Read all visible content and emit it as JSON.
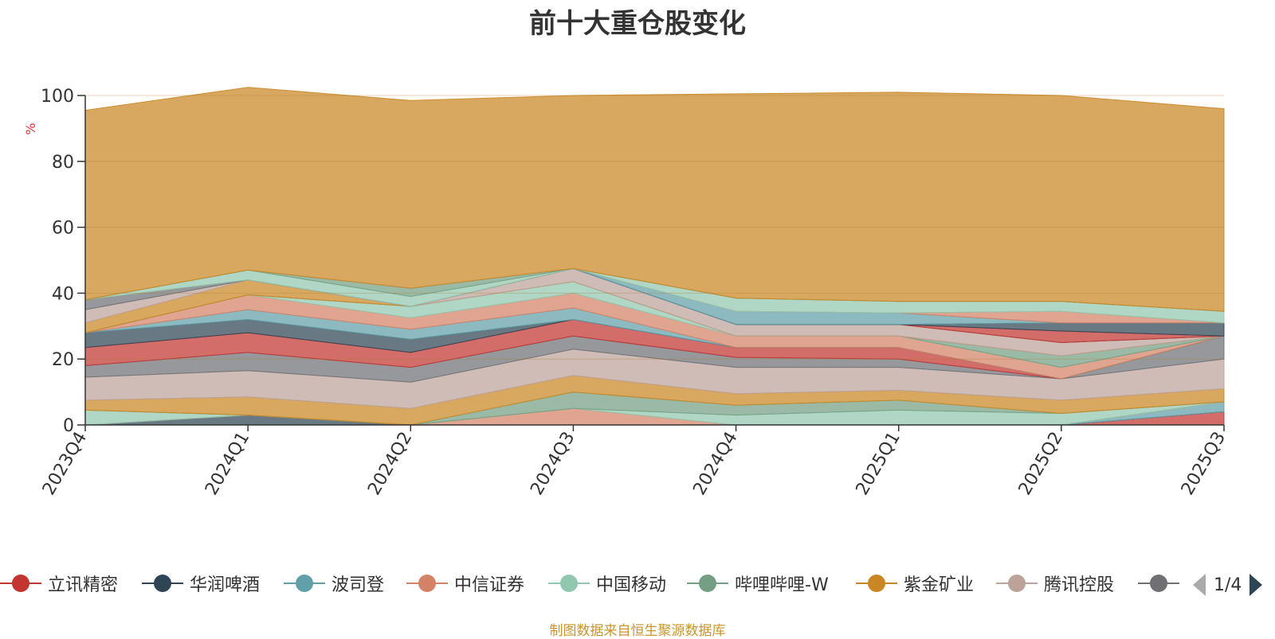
{
  "title": "前十大重仓股变化",
  "source": "制图数据来自恒生聚源数据库",
  "legend_page": "1/4",
  "chart_data": {
    "type": "area",
    "title": "前十大重仓股变化",
    "ylabel": "%",
    "ylim": [
      0,
      100
    ],
    "yticks": [
      0,
      20,
      40,
      60,
      80,
      100
    ],
    "grid": true,
    "stacked": true,
    "legend_position": "bottom",
    "categories": [
      "2023Q4",
      "2024Q1",
      "2024Q2",
      "2024Q3",
      "2024Q4",
      "2025Q1",
      "2025Q2",
      "2025Q3"
    ],
    "series": [
      {
        "name": "立讯精密",
        "color": "#c23531",
        "values": [
          0,
          0,
          0,
          0,
          0,
          0,
          0,
          4
        ]
      },
      {
        "name": "华润啤酒",
        "color": "#2f4554",
        "values": [
          0,
          3,
          0,
          0,
          0,
          0,
          0,
          0
        ]
      },
      {
        "name": "波司登",
        "color": "#61a0a8",
        "values": [
          0,
          0,
          0,
          0,
          0,
          0,
          0,
          3
        ]
      },
      {
        "name": "中信证券",
        "color": "#d48265",
        "values": [
          0,
          0,
          0,
          5,
          0,
          0,
          0,
          0
        ]
      },
      {
        "name": "中国移动",
        "color": "#91c7ae",
        "values": [
          4.5,
          0,
          0,
          0,
          3,
          4.5,
          3.5,
          0
        ]
      },
      {
        "name": "哔哩哔哩-W",
        "color": "#749f83",
        "values": [
          0,
          0,
          0,
          5,
          3,
          3,
          0,
          0
        ]
      },
      {
        "name": "紫金矿业",
        "color": "#ca8622",
        "values": [
          3,
          5.5,
          5,
          5,
          3.5,
          3,
          4,
          4
        ]
      },
      {
        "name": "腾讯控股",
        "color": "#bda29a",
        "values": [
          7,
          8,
          8,
          8,
          8,
          7,
          6.5,
          9
        ]
      },
      {
        "name": "",
        "color": "#6e7074",
        "values": [
          3.5,
          5.5,
          4.5,
          4,
          3,
          2.5,
          0,
          7
        ]
      },
      {
        "name": "",
        "color": "#c23531",
        "values": [
          5.5,
          6,
          4.5,
          5,
          3,
          3.5,
          0,
          0
        ]
      },
      {
        "name": "",
        "color": "#2f4554",
        "values": [
          4.5,
          4,
          4,
          0,
          0,
          0,
          0,
          0
        ]
      },
      {
        "name": "",
        "color": "#61a0a8",
        "values": [
          0,
          3,
          3,
          3.5,
          0,
          0,
          0,
          0
        ]
      },
      {
        "name": "",
        "color": "#d48265",
        "values": [
          0,
          4.5,
          3.5,
          4.5,
          3.5,
          3.5,
          3.5,
          0
        ]
      },
      {
        "name": "",
        "color": "#91c7ae",
        "values": [
          0,
          0,
          3.5,
          3.5,
          0,
          0,
          0,
          0
        ]
      },
      {
        "name": "",
        "color": "#749f83",
        "values": [
          0,
          0,
          0,
          0,
          0,
          0,
          3.5,
          0
        ]
      },
      {
        "name": "",
        "color": "#ca8622",
        "values": [
          3,
          4.5,
          0,
          0,
          0,
          0,
          0,
          0
        ]
      },
      {
        "name": "",
        "color": "#bda29a",
        "values": [
          4,
          0,
          0,
          4,
          3.5,
          3.5,
          4,
          0
        ]
      },
      {
        "name": "",
        "color": "#6e7074",
        "values": [
          3,
          0,
          0,
          0,
          0,
          0,
          0,
          0
        ]
      },
      {
        "name": "",
        "color": "#c23531",
        "values": [
          0,
          0,
          0,
          0,
          0,
          0,
          3.5,
          0
        ]
      },
      {
        "name": "",
        "color": "#2f4554",
        "values": [
          0,
          0,
          0,
          0,
          0,
          0,
          2.5,
          4
        ]
      },
      {
        "name": "",
        "color": "#61a0a8",
        "values": [
          0,
          0,
          0,
          0,
          4,
          3.5,
          0,
          0
        ]
      },
      {
        "name": "",
        "color": "#d48265",
        "values": [
          0,
          0,
          0,
          0,
          0,
          0,
          3.5,
          0
        ]
      },
      {
        "name": "",
        "color": "#91c7ae",
        "values": [
          0,
          3,
          3,
          0,
          4,
          3.5,
          3,
          3.5
        ]
      },
      {
        "name": "",
        "color": "#749f83",
        "values": [
          0,
          0,
          2.5,
          0,
          0,
          0,
          0,
          0
        ]
      },
      {
        "name": "",
        "color": "#ca8622",
        "values": [
          57.5,
          55.5,
          57,
          52.5,
          62,
          63.5,
          62.5,
          61.5
        ]
      }
    ]
  }
}
